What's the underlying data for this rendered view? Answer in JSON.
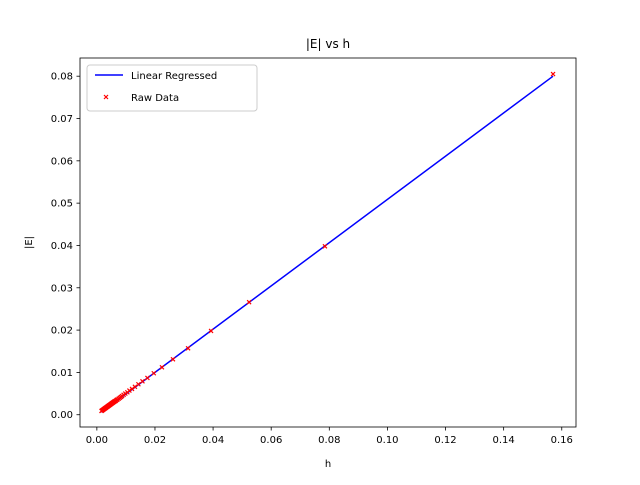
{
  "chart_data": {
    "type": "scatter",
    "title": "|E| vs h",
    "xlabel": "h",
    "ylabel": "|E|",
    "xlim": [
      -0.0058,
      0.1649
    ],
    "ylim": [
      -0.0029,
      0.0843
    ],
    "xticks": [
      0.0,
      0.02,
      0.04,
      0.06,
      0.08,
      0.1,
      0.12,
      0.14,
      0.16
    ],
    "xtick_labels": [
      "0.00",
      "0.02",
      "0.04",
      "0.06",
      "0.08",
      "0.10",
      "0.12",
      "0.14",
      "0.16"
    ],
    "yticks": [
      0.0,
      0.01,
      0.02,
      0.03,
      0.04,
      0.05,
      0.06,
      0.07,
      0.08
    ],
    "ytick_labels": [
      "0.00",
      "0.01",
      "0.02",
      "0.03",
      "0.04",
      "0.05",
      "0.06",
      "0.07",
      "0.08"
    ],
    "grid": false,
    "legend_position": "top-left",
    "series": [
      {
        "name": "Linear Regressed",
        "kind": "line",
        "color": "#0000ff",
        "x": [
          0.0016,
          0.157
        ],
        "y": [
          0.0006,
          0.08
        ]
      },
      {
        "name": "Raw Data",
        "kind": "scatter",
        "marker": "x",
        "color": "#ff0000",
        "x": [
          0.157,
          0.0785,
          0.0524,
          0.0393,
          0.0314,
          0.0262,
          0.0224,
          0.0196,
          0.0174,
          0.0157,
          0.0143,
          0.0131,
          0.0121,
          0.0112,
          0.0105,
          0.0098,
          0.0092,
          0.0087,
          0.0083,
          0.0079,
          0.0075,
          0.0071,
          0.0068,
          0.0065,
          0.0063,
          0.006,
          0.0058,
          0.0056,
          0.0054,
          0.0052,
          0.005,
          0.0048,
          0.0046,
          0.0044,
          0.0042,
          0.004,
          0.0038,
          0.0036,
          0.0034,
          0.0032,
          0.003,
          0.0028,
          0.0026,
          0.0024,
          0.0022,
          0.002,
          0.0018,
          0.0016
        ],
        "y": [
          0.0805,
          0.0398,
          0.0266,
          0.0198,
          0.0157,
          0.0131,
          0.0112,
          0.0098,
          0.0087,
          0.0079,
          0.0072,
          0.0066,
          0.0061,
          0.0057,
          0.0053,
          0.005,
          0.0047,
          0.0044,
          0.0042,
          0.004,
          0.0038,
          0.0036,
          0.0035,
          0.0033,
          0.0032,
          0.0031,
          0.003,
          0.0029,
          0.0028,
          0.0027,
          0.0026,
          0.0025,
          0.0024,
          0.0023,
          0.0022,
          0.0021,
          0.002,
          0.0019,
          0.0018,
          0.0017,
          0.0016,
          0.0015,
          0.0014,
          0.0013,
          0.0012,
          0.0011,
          0.001,
          0.0009
        ]
      }
    ]
  }
}
